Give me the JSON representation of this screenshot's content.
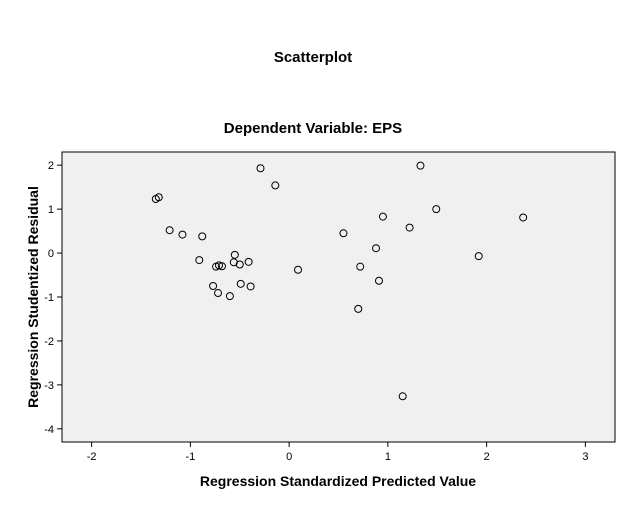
{
  "chart_data": {
    "type": "scatter",
    "title": "Scatterplot",
    "subtitle": "Dependent Variable: EPS",
    "xlabel": "Regression Standardized Predicted Value",
    "ylabel": "Regression Studentized Residual",
    "xlim": [
      -2.3,
      3.3
    ],
    "ylim": [
      -4.3,
      2.3
    ],
    "xticks": [
      -2,
      -1,
      0,
      1,
      2,
      3
    ],
    "yticks": [
      -4,
      -3,
      -2,
      -1,
      0,
      1,
      2
    ],
    "xtick_labels": [
      "-2",
      "-1",
      "0",
      "1",
      "2",
      "3"
    ],
    "ytick_labels": [
      "-4",
      "-3",
      "-2",
      "-1",
      "0",
      "1",
      "2"
    ],
    "grid": false,
    "plot_background": "#f0f0f0",
    "marker": "open-circle",
    "points": [
      {
        "x": -1.35,
        "y": 1.23
      },
      {
        "x": -1.32,
        "y": 1.27
      },
      {
        "x": -1.21,
        "y": 0.52
      },
      {
        "x": -1.08,
        "y": 0.42
      },
      {
        "x": -0.88,
        "y": 0.38
      },
      {
        "x": -0.91,
        "y": -0.16
      },
      {
        "x": -0.77,
        "y": -0.75
      },
      {
        "x": -0.74,
        "y": -0.31
      },
      {
        "x": -0.71,
        "y": -0.28
      },
      {
        "x": -0.68,
        "y": -0.3
      },
      {
        "x": -0.72,
        "y": -0.91
      },
      {
        "x": -0.6,
        "y": -0.98
      },
      {
        "x": -0.56,
        "y": -0.21
      },
      {
        "x": -0.55,
        "y": -0.04
      },
      {
        "x": -0.5,
        "y": -0.26
      },
      {
        "x": -0.49,
        "y": -0.7
      },
      {
        "x": -0.41,
        "y": -0.2
      },
      {
        "x": -0.39,
        "y": -0.76
      },
      {
        "x": -0.29,
        "y": 1.93
      },
      {
        "x": -0.14,
        "y": 1.54
      },
      {
        "x": 0.09,
        "y": -0.38
      },
      {
        "x": 0.55,
        "y": 0.45
      },
      {
        "x": 0.7,
        "y": -1.27
      },
      {
        "x": 0.72,
        "y": -0.31
      },
      {
        "x": 0.88,
        "y": 0.11
      },
      {
        "x": 0.91,
        "y": -0.63
      },
      {
        "x": 0.95,
        "y": 0.83
      },
      {
        "x": 1.15,
        "y": -3.26
      },
      {
        "x": 1.22,
        "y": 0.58
      },
      {
        "x": 1.33,
        "y": 1.99
      },
      {
        "x": 1.49,
        "y": 1.0
      },
      {
        "x": 1.92,
        "y": -0.07
      },
      {
        "x": 2.37,
        "y": 0.81
      }
    ]
  }
}
